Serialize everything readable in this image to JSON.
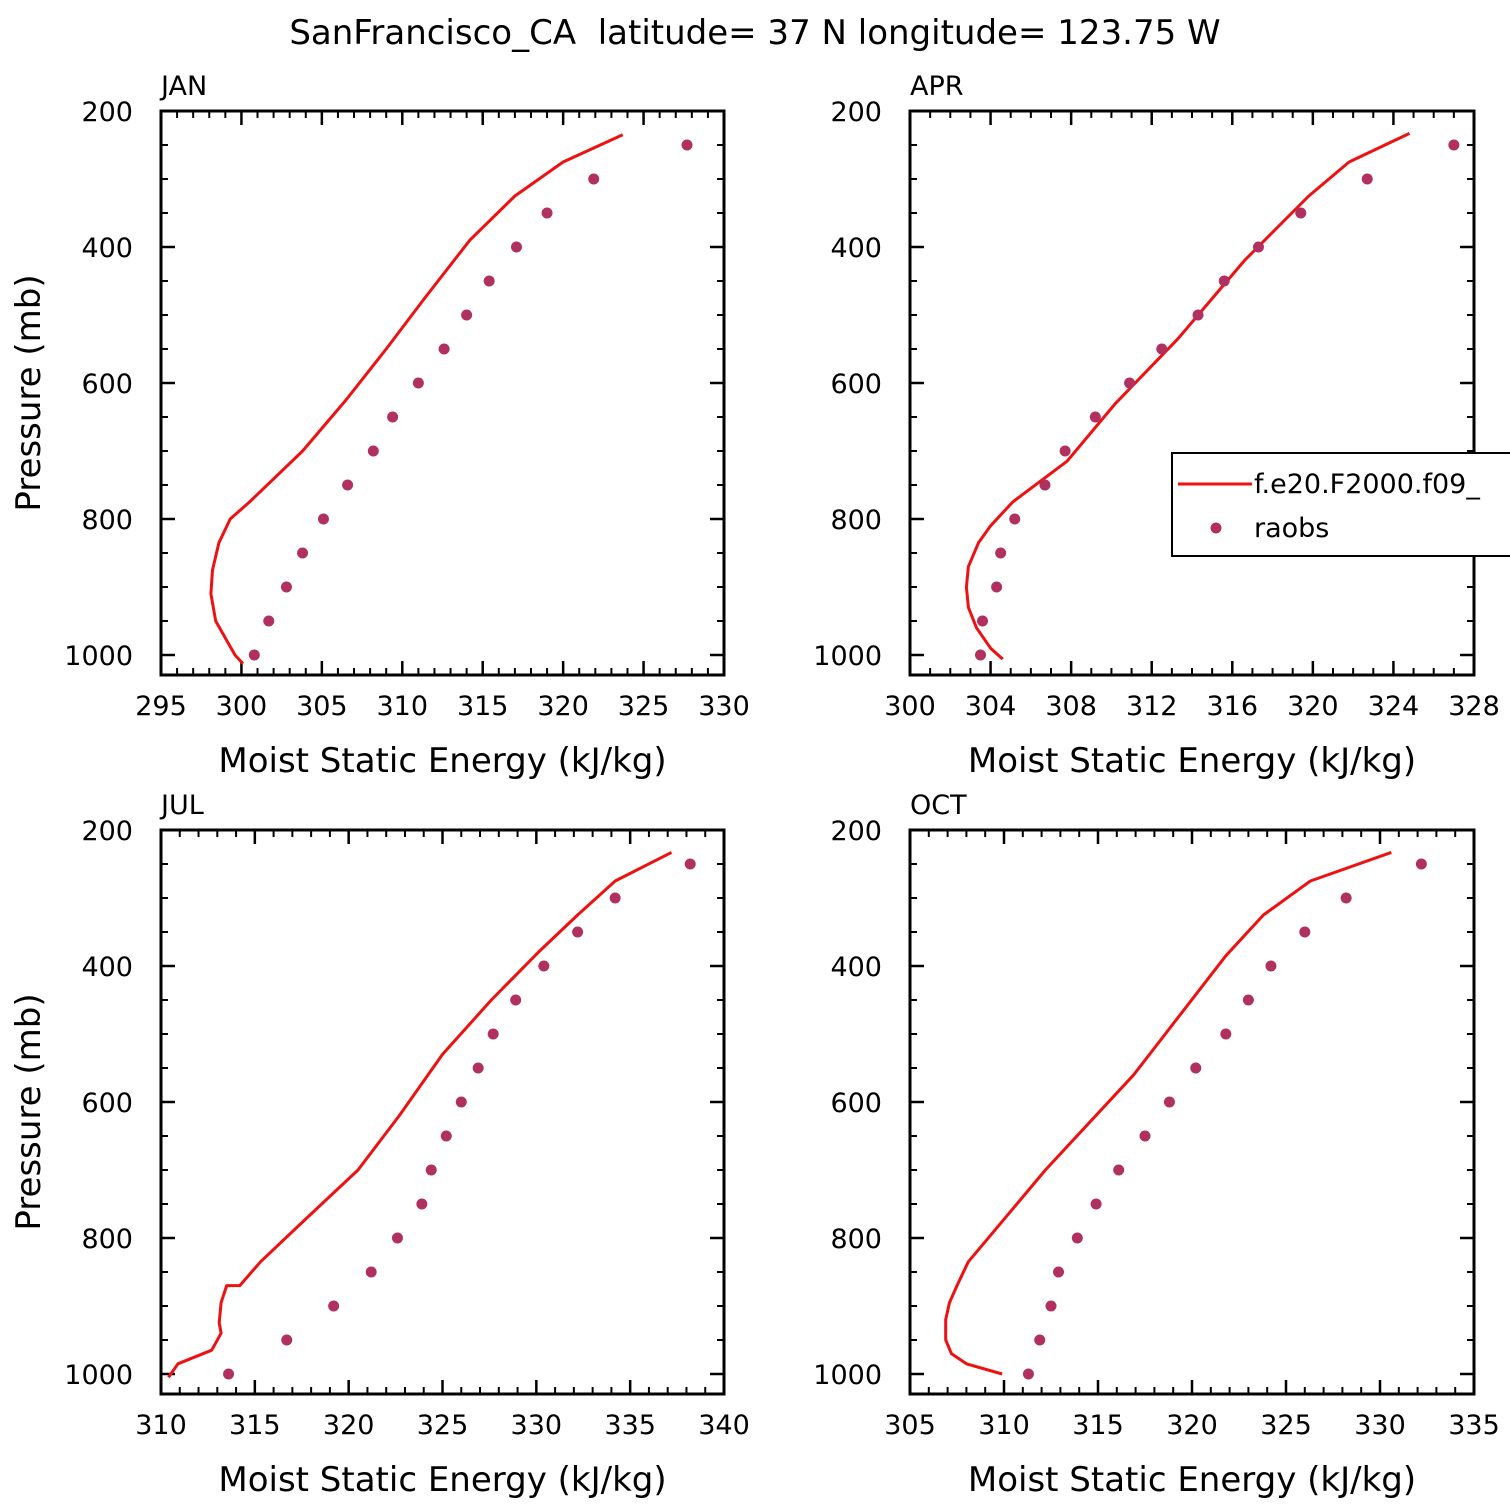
{
  "figure_title": "SanFrancisco_CA  latitude= 37 N longitude= 123.75 W",
  "colors": {
    "model": "#ee1111",
    "obs": "#b03060",
    "axis": "#000000"
  },
  "legend": {
    "model_label": "f.e20.F2000.f09_",
    "obs_label": "raobs"
  },
  "chart_data": [
    {
      "type": "line",
      "title": "JAN",
      "xlabel": "Moist Static Energy (kJ/kg)",
      "ylabel": "Pressure (mb)",
      "xlim": [
        295,
        330
      ],
      "ylim": [
        1000,
        200
      ],
      "xticks": [
        295,
        300,
        305,
        310,
        315,
        320,
        325,
        330
      ],
      "xminor": 1,
      "yticks": [
        200,
        400,
        600,
        800,
        1000
      ],
      "yminor": 50,
      "legend": false,
      "series": [
        {
          "name": "f.e20.F2000.f09_",
          "style": "line",
          "x": [
            300.1,
            299.6,
            299.0,
            298.4,
            298.1,
            298.2,
            298.6,
            299.3,
            300.5,
            303.8,
            306.5,
            309.0,
            311.4,
            314.2,
            317.0,
            320.0,
            323.7
          ],
          "y": [
            1013,
            1000,
            975,
            950,
            910,
            875,
            835,
            800,
            775,
            700,
            625,
            550,
            475,
            390,
            325,
            275,
            235
          ]
        },
        {
          "name": "raobs",
          "style": "points",
          "x": [
            300.8,
            301.7,
            302.8,
            303.8,
            305.1,
            306.6,
            308.2,
            309.4,
            311.0,
            312.6,
            314.0,
            315.4,
            317.1,
            319.0,
            321.9,
            327.7
          ],
          "y": [
            1000,
            950,
            900,
            850,
            800,
            750,
            700,
            650,
            600,
            550,
            500,
            450,
            400,
            350,
            300,
            250
          ]
        }
      ]
    },
    {
      "type": "line",
      "title": "APR",
      "xlabel": "Moist Static Energy (kJ/kg)",
      "ylabel": "",
      "xlim": [
        300,
        328
      ],
      "ylim": [
        1000,
        200
      ],
      "xticks": [
        300,
        304,
        308,
        312,
        316,
        320,
        324,
        328
      ],
      "xminor": 1,
      "yticks": [
        200,
        400,
        600,
        800,
        1000
      ],
      "yminor": 50,
      "legend": true,
      "series": [
        {
          "name": "f.e20.F2000.f09_",
          "style": "line",
          "x": [
            304.6,
            304.0,
            303.3,
            302.9,
            302.8,
            302.9,
            303.4,
            304.0,
            305.1,
            307.8,
            310.2,
            313.3,
            316.6,
            319.8,
            321.8,
            324.8
          ],
          "y": [
            1006,
            990,
            960,
            930,
            900,
            870,
            835,
            810,
            775,
            715,
            630,
            535,
            420,
            325,
            275,
            233
          ]
        },
        {
          "name": "raobs",
          "style": "points",
          "x": [
            303.5,
            303.6,
            304.3,
            304.5,
            305.2,
            306.7,
            307.7,
            309.2,
            310.9,
            312.5,
            314.3,
            315.6,
            317.3,
            319.4,
            322.7,
            327.0
          ],
          "y": [
            1000,
            950,
            900,
            850,
            800,
            750,
            700,
            650,
            600,
            550,
            500,
            450,
            400,
            350,
            300,
            250
          ]
        }
      ]
    },
    {
      "type": "line",
      "title": "JUL",
      "xlabel": "Moist Static Energy (kJ/kg)",
      "ylabel": "Pressure (mb)",
      "xlim": [
        310,
        340
      ],
      "ylim": [
        1000,
        200
      ],
      "xticks": [
        310,
        315,
        320,
        325,
        330,
        335,
        340
      ],
      "xminor": 1,
      "yticks": [
        200,
        400,
        600,
        800,
        1000
      ],
      "yminor": 50,
      "legend": false,
      "series": [
        {
          "name": "f.e20.F2000.f09_",
          "style": "line",
          "x": [
            310.4,
            310.9,
            312.7,
            313.2,
            313.1,
            313.2,
            313.5,
            314.2,
            315.3,
            317.6,
            320.5,
            322.7,
            325.0,
            327.6,
            330.1,
            332.2,
            334.2,
            337.2
          ],
          "y": [
            1005,
            985,
            965,
            940,
            925,
            895,
            870,
            870,
            835,
            775,
            700,
            620,
            530,
            450,
            380,
            325,
            275,
            233
          ]
        },
        {
          "name": "raobs",
          "style": "points",
          "x": [
            313.6,
            316.7,
            319.2,
            321.2,
            322.6,
            323.9,
            324.4,
            325.2,
            326.0,
            326.9,
            327.7,
            328.9,
            330.4,
            332.2,
            334.2,
            338.2
          ],
          "y": [
            1000,
            950,
            900,
            850,
            800,
            750,
            700,
            650,
            600,
            550,
            500,
            450,
            400,
            350,
            300,
            250
          ]
        }
      ]
    },
    {
      "type": "line",
      "title": "OCT",
      "xlabel": "Moist Static Energy (kJ/kg)",
      "ylabel": "",
      "xlim": [
        305,
        335
      ],
      "ylim": [
        1000,
        200
      ],
      "xticks": [
        305,
        310,
        315,
        320,
        325,
        330,
        335
      ],
      "xminor": 1,
      "yticks": [
        200,
        400,
        600,
        800,
        1000
      ],
      "yminor": 50,
      "legend": false,
      "series": [
        {
          "name": "f.e20.F2000.f09_",
          "style": "line",
          "x": [
            309.9,
            308.0,
            307.2,
            306.9,
            306.9,
            307.1,
            307.5,
            308.1,
            312.2,
            316.9,
            321.8,
            323.8,
            326.3,
            330.6
          ],
          "y": [
            1000,
            985,
            970,
            950,
            920,
            895,
            870,
            835,
            700,
            560,
            385,
            325,
            275,
            233
          ]
        },
        {
          "name": "raobs",
          "style": "points",
          "x": [
            311.3,
            311.9,
            312.5,
            312.9,
            313.9,
            314.9,
            316.1,
            317.5,
            318.8,
            320.2,
            321.8,
            323.0,
            324.2,
            326.0,
            328.2,
            332.2
          ],
          "y": [
            1000,
            950,
            900,
            850,
            800,
            750,
            700,
            650,
            600,
            550,
            500,
            450,
            400,
            350,
            300,
            250
          ]
        }
      ]
    }
  ]
}
